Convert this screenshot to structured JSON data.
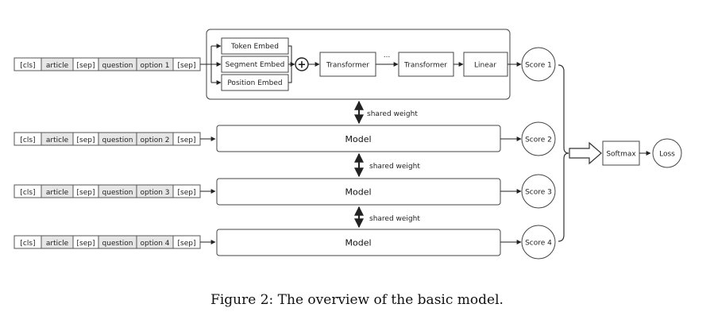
{
  "input_rows": [
    [
      "[cls]",
      "article",
      "[sep]",
      "question",
      "option 1",
      "[sep]"
    ],
    [
      "[cls]",
      "article",
      "[sep]",
      "question",
      "option 2",
      "[sep]"
    ],
    [
      "[cls]",
      "article",
      "[sep]",
      "question",
      "option 3",
      "[sep]"
    ],
    [
      "[cls]",
      "article",
      "[sep]",
      "question",
      "option 4",
      "[sep]"
    ]
  ],
  "embeddings": [
    "Token Embed",
    "Segment Embed",
    "Position Embed"
  ],
  "plus_symbol": "+",
  "transformer_1": "Transformer",
  "transformer_2": "Transformer",
  "ellipsis": "...",
  "linear": "Linear",
  "model_label": "Model",
  "shared_weight": "shared weight",
  "scores": [
    "Score 1",
    "Score 2",
    "Score 3",
    "Score 4"
  ],
  "softmax": "Softmax",
  "loss": "Loss",
  "caption": "Figure 2: The overview of the basic model."
}
